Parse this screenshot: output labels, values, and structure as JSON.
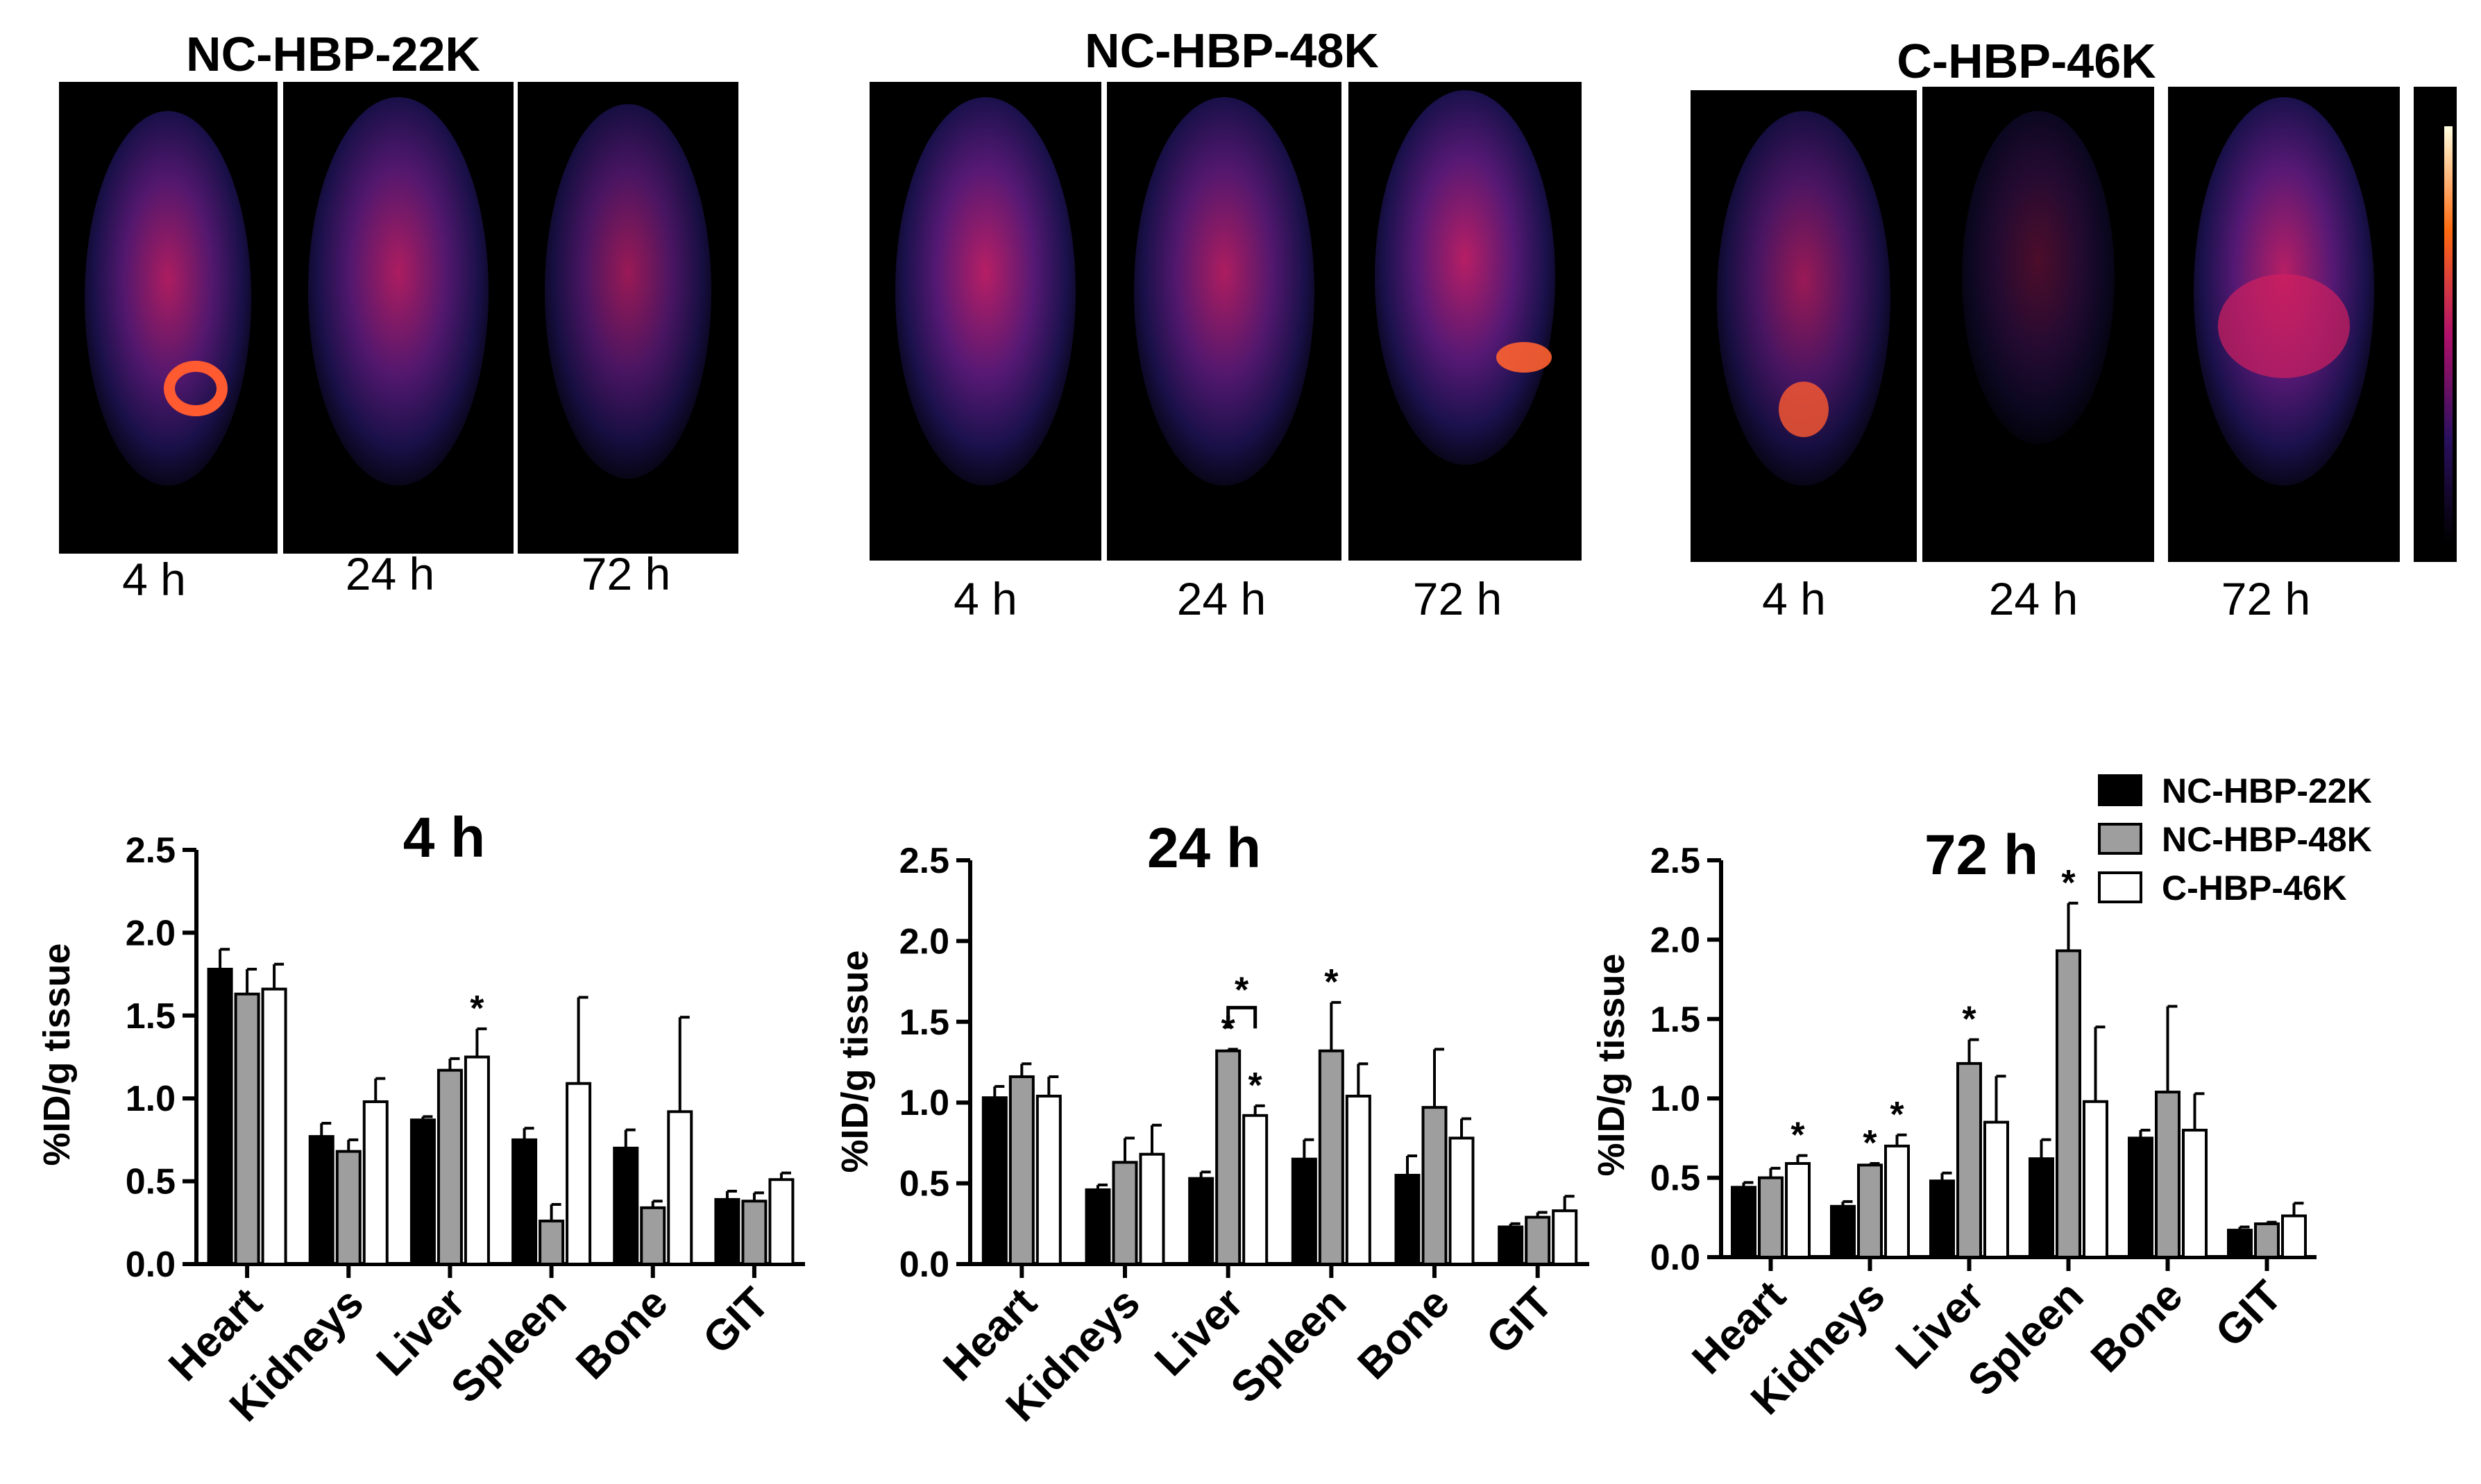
{
  "image_panels": {
    "groups": [
      {
        "title": "NC-HBP-22K",
        "time_labels": [
          "4 h",
          "24 h",
          "72 h"
        ]
      },
      {
        "title": "NC-HBP-48K",
        "time_labels": [
          "4 h",
          "24 h",
          "72 h"
        ]
      },
      {
        "title": "C-HBP-46K",
        "time_labels": [
          "4 h",
          "24 h",
          "72 h"
        ]
      }
    ]
  },
  "legend": {
    "entries": [
      {
        "label": "NC-HBP-22K",
        "color": "#000000"
      },
      {
        "label": "NC-HBP-48K",
        "color": "#9e9e9e"
      },
      {
        "label": "C-HBP-46K",
        "color": "#ffffff"
      }
    ]
  },
  "chart_data": [
    {
      "type": "bar",
      "title": "4 h",
      "ylabel": "%ID/g tissue",
      "xlabel": "",
      "ylim": [
        0,
        2.5
      ],
      "yticks": [
        "0.0",
        "0.5",
        "1.0",
        "1.5",
        "2.0",
        "2.5"
      ],
      "categories": [
        "Heart",
        "Kidneys",
        "Liver",
        "Spleen",
        "Bone",
        "GIT"
      ],
      "series": [
        {
          "name": "NC-HBP-22K",
          "values": [
            1.78,
            0.77,
            0.87,
            0.75,
            0.7,
            0.39
          ],
          "errors": [
            0.12,
            0.08,
            0.02,
            0.07,
            0.11,
            0.05
          ]
        },
        {
          "name": "NC-HBP-48K",
          "values": [
            1.63,
            0.68,
            1.17,
            0.26,
            0.34,
            0.38
          ],
          "errors": [
            0.15,
            0.07,
            0.07,
            0.1,
            0.04,
            0.05
          ]
        },
        {
          "name": "C-HBP-46K",
          "values": [
            1.66,
            0.98,
            1.25,
            1.09,
            0.92,
            0.51
          ],
          "errors": [
            0.15,
            0.14,
            0.17,
            0.52,
            0.57,
            0.04
          ]
        }
      ],
      "annotations": [
        {
          "text": "*",
          "category": "Liver",
          "series": "C-HBP-46K"
        }
      ]
    },
    {
      "type": "bar",
      "title": "24 h",
      "ylabel": "%ID/g tissue",
      "xlabel": "",
      "ylim": [
        0,
        2.5
      ],
      "yticks": [
        "0.0",
        "0.5",
        "1.0",
        "1.5",
        "2.0",
        "2.5"
      ],
      "categories": [
        "Heart",
        "Kidneys",
        "Liver",
        "Spleen",
        "Bone",
        "GIT"
      ],
      "series": [
        {
          "name": "NC-HBP-22K",
          "values": [
            1.03,
            0.46,
            0.53,
            0.65,
            0.55,
            0.23
          ],
          "errors": [
            0.07,
            0.03,
            0.04,
            0.12,
            0.12,
            0.02
          ]
        },
        {
          "name": "NC-HBP-48K",
          "values": [
            1.16,
            0.63,
            1.32,
            1.32,
            0.97,
            0.29
          ],
          "errors": [
            0.08,
            0.15,
            0.01,
            0.3,
            0.36,
            0.03
          ]
        },
        {
          "name": "C-HBP-46K",
          "values": [
            1.04,
            0.68,
            0.92,
            1.04,
            0.78,
            0.33
          ],
          "errors": [
            0.12,
            0.18,
            0.06,
            0.2,
            0.12,
            0.09
          ]
        }
      ],
      "annotations": [
        {
          "text": "*",
          "category": "Liver",
          "series": "NC-HBP-48K"
        },
        {
          "text": "*",
          "category": "Liver",
          "series": "C-HBP-46K"
        },
        {
          "text": "*",
          "category": "Liver",
          "between": [
            "NC-HBP-48K",
            "C-HBP-46K"
          ]
        },
        {
          "text": "*",
          "category": "Spleen",
          "series": "NC-HBP-48K"
        }
      ]
    },
    {
      "type": "bar",
      "title": "72 h",
      "ylabel": "%ID/g tissue",
      "xlabel": "",
      "ylim": [
        0,
        2.5
      ],
      "yticks": [
        "0.0",
        "0.5",
        "1.0",
        "1.5",
        "2.0",
        "2.5"
      ],
      "categories": [
        "Heart",
        "Kidneys",
        "Liver",
        "Spleen",
        "Bone",
        "GIT"
      ],
      "series": [
        {
          "name": "NC-HBP-22K",
          "values": [
            0.44,
            0.32,
            0.48,
            0.62,
            0.75,
            0.17
          ],
          "errors": [
            0.03,
            0.03,
            0.05,
            0.12,
            0.05,
            0.02
          ]
        },
        {
          "name": "NC-HBP-48K",
          "values": [
            0.5,
            0.58,
            1.22,
            1.93,
            1.04,
            0.21
          ],
          "errors": [
            0.06,
            0.01,
            0.15,
            0.3,
            0.54,
            0.01
          ]
        },
        {
          "name": "C-HBP-46K",
          "values": [
            0.59,
            0.7,
            0.85,
            0.98,
            0.8,
            0.26
          ],
          "errors": [
            0.05,
            0.07,
            0.29,
            0.47,
            0.23,
            0.08
          ]
        }
      ],
      "annotations": [
        {
          "text": "*",
          "category": "Heart",
          "series": "C-HBP-46K"
        },
        {
          "text": "*",
          "category": "Kidneys",
          "series": "NC-HBP-48K"
        },
        {
          "text": "*",
          "category": "Kidneys",
          "series": "C-HBP-46K"
        },
        {
          "text": "*",
          "category": "Liver",
          "series": "NC-HBP-48K"
        },
        {
          "text": "*",
          "category": "Spleen",
          "series": "NC-HBP-48K"
        }
      ]
    }
  ]
}
